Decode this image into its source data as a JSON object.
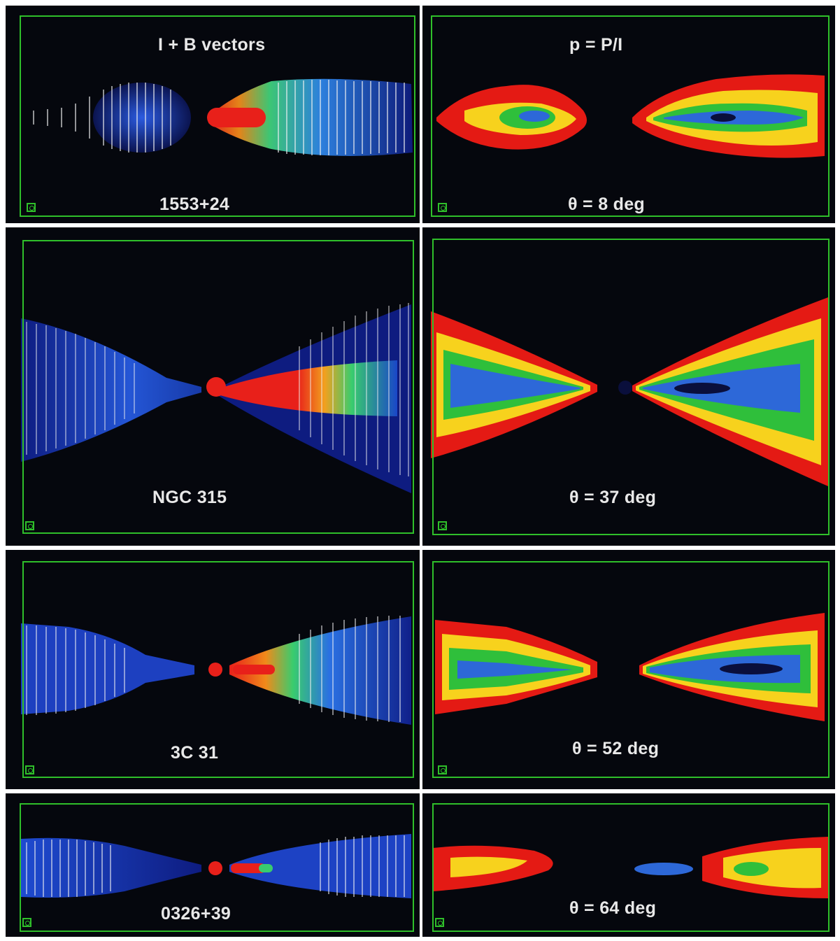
{
  "header": {
    "left_title": "I + B vectors",
    "right_title": "p = P/I"
  },
  "rows": [
    {
      "source": "1553+24",
      "angle_label": "θ = 8 deg"
    },
    {
      "source": "NGC 315",
      "angle_label": "θ = 37 deg"
    },
    {
      "source": "3C 31",
      "angle_label": "θ = 52 deg"
    },
    {
      "source": "0326+39",
      "angle_label": "θ = 64 deg"
    }
  ],
  "colors": {
    "frame": "#2fbf2a",
    "background": "#05070d",
    "intensity_low": "#1a2fb8",
    "intensity_mid": "#35c06a",
    "intensity_high": "#e8201a",
    "polarization_palette": [
      "#e41a14",
      "#f7d21d",
      "#2fbf3b",
      "#2d68d8",
      "#0a0f3c"
    ]
  }
}
